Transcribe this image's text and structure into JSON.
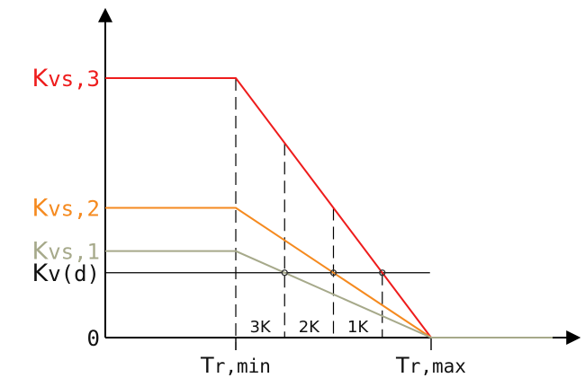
{
  "chart_data": {
    "type": "line",
    "title": "",
    "xlabel": "",
    "ylabel": "",
    "y_tick_labels": [
      {
        "key": "kvs3",
        "prefix": "K",
        "subscript": "vs,3",
        "color": "#ee1c1c"
      },
      {
        "key": "kvs2",
        "prefix": "K",
        "subscript": "vs,2",
        "color": "#f58a1f"
      },
      {
        "key": "kvs1",
        "prefix": "K",
        "subscript": "vs,1",
        "color": "#a6a98a"
      },
      {
        "key": "kvd",
        "prefix": "K",
        "subscript": "v(d)",
        "color": "#111111"
      },
      {
        "key": "zero",
        "prefix": "",
        "subscript": "0",
        "color": "#111111"
      }
    ],
    "x_tick_labels": [
      {
        "key": "trmin",
        "prefix": "T",
        "subscript": "r,min",
        "color": "#111111"
      },
      {
        "key": "trmax",
        "prefix": "T",
        "subscript": "r,max",
        "color": "#111111"
      }
    ],
    "delta_labels": [
      "3K",
      "2K",
      "1K"
    ],
    "series": [
      {
        "label_key": "kvs3",
        "color": "#ee1c1c",
        "level": 3.0
      },
      {
        "label_key": "kvs2",
        "color": "#f58a1f",
        "level": 1.5
      },
      {
        "label_key": "kvs1",
        "color": "#a6a98a",
        "level": 1.0
      }
    ],
    "kv_d_level": 0.75,
    "tr_min": 0,
    "tr_max": 4,
    "x_range": [
      -3,
      7
    ],
    "ylim": [
      0,
      3.45
    ],
    "grid": false,
    "legend": "none"
  }
}
